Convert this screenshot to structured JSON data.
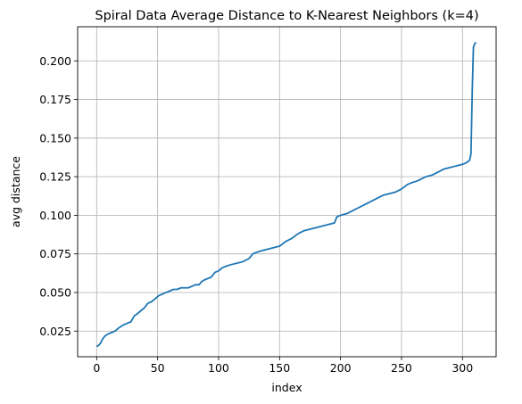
{
  "chart_data": {
    "type": "line",
    "title": "Spiral Data Average Distance to K-Nearest Neighbors (k=4)",
    "xlabel": "index",
    "ylabel": "avg distance",
    "xlim": [
      -15.6,
      327.6
    ],
    "ylim": [
      0.0084,
      0.2221
    ],
    "xticks": [
      0,
      50,
      100,
      150,
      200,
      250,
      300
    ],
    "yticks": [
      0.025,
      0.05,
      0.075,
      0.1,
      0.125,
      0.15,
      0.175,
      0.2
    ],
    "xtick_labels": [
      "0",
      "50",
      "100",
      "150",
      "200",
      "250",
      "300"
    ],
    "ytick_labels": [
      "0.025",
      "0.050",
      "0.075",
      "0.100",
      "0.125",
      "0.150",
      "0.175",
      "0.200"
    ],
    "grid": true,
    "line_color": "#1f77b4",
    "series": [
      {
        "x": [
          0,
          2,
          3,
          5,
          7,
          9,
          12,
          15,
          18,
          22,
          25,
          28,
          31,
          33,
          36,
          39,
          42,
          45,
          48,
          51,
          54,
          57,
          60,
          63,
          66,
          69,
          72,
          75,
          78,
          81,
          84,
          86,
          88,
          91,
          94,
          97,
          100,
          103,
          106,
          110,
          115,
          120,
          125,
          128,
          131,
          135,
          140,
          145,
          150,
          155,
          160,
          165,
          170,
          175,
          180,
          185,
          190,
          195,
          197,
          200,
          205,
          210,
          215,
          220,
          225,
          230,
          235,
          240,
          245,
          250,
          255,
          258,
          262,
          265,
          270,
          275,
          280,
          285,
          290,
          295,
          300,
          303,
          305,
          306,
          307,
          308,
          309,
          310,
          311
        ],
        "y": [
          0.015,
          0.016,
          0.017,
          0.02,
          0.022,
          0.023,
          0.024,
          0.025,
          0.027,
          0.029,
          0.03,
          0.031,
          0.035,
          0.036,
          0.038,
          0.04,
          0.043,
          0.044,
          0.046,
          0.048,
          0.049,
          0.05,
          0.051,
          0.052,
          0.052,
          0.053,
          0.053,
          0.053,
          0.054,
          0.055,
          0.055,
          0.057,
          0.058,
          0.059,
          0.06,
          0.063,
          0.064,
          0.066,
          0.067,
          0.068,
          0.069,
          0.07,
          0.072,
          0.075,
          0.076,
          0.077,
          0.078,
          0.079,
          0.08,
          0.083,
          0.085,
          0.088,
          0.09,
          0.091,
          0.092,
          0.093,
          0.094,
          0.095,
          0.099,
          0.1,
          0.101,
          0.103,
          0.105,
          0.107,
          0.109,
          0.111,
          0.113,
          0.114,
          0.115,
          0.117,
          0.12,
          0.121,
          0.122,
          0.123,
          0.125,
          0.126,
          0.128,
          0.13,
          0.131,
          0.132,
          0.133,
          0.134,
          0.135,
          0.136,
          0.14,
          0.18,
          0.209,
          0.211,
          0.212
        ]
      }
    ]
  }
}
